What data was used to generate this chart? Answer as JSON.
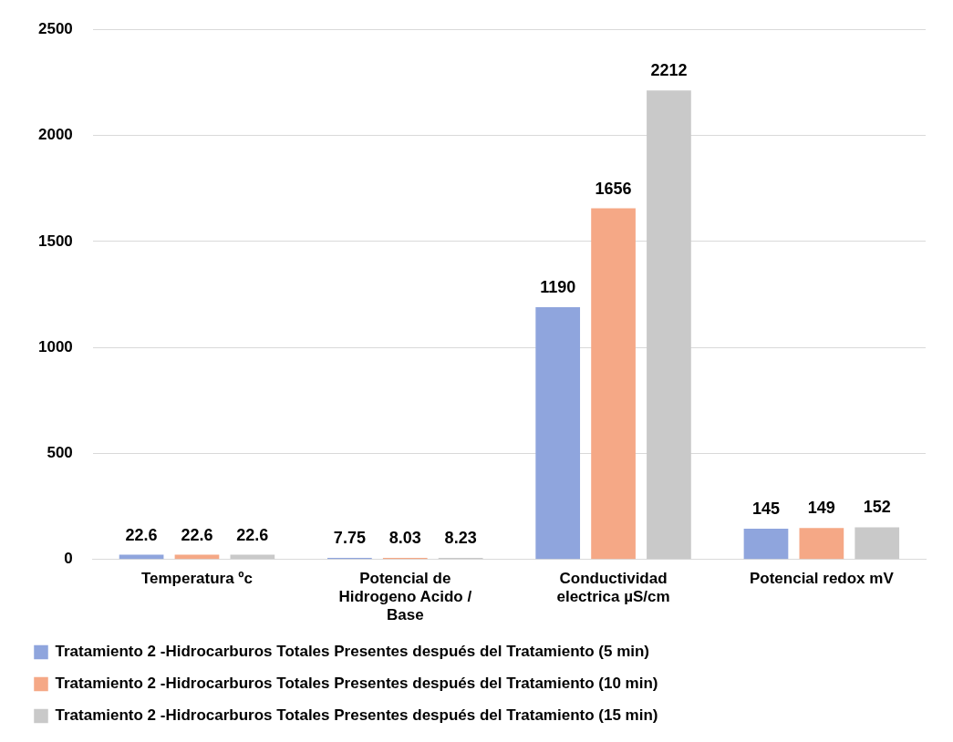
{
  "chart_data": {
    "type": "bar",
    "categories": [
      "Temperatura ºc",
      "Potencial de Hidrogeno Acido / Base",
      "Conductividad electrica µS/cm",
      "Potencial redox mV"
    ],
    "series": [
      {
        "name": "Tratamiento 2 -Hidrocarburos Totales Presentes después del Tratamiento (5 min)",
        "color": "#8fa5dd",
        "values": [
          22.6,
          7.75,
          1190,
          145
        ]
      },
      {
        "name": "Tratamiento 2 -Hidrocarburos Totales Presentes después del Tratamiento (10 min)",
        "color": "#f5a886",
        "values": [
          22.6,
          8.03,
          1656,
          149
        ]
      },
      {
        "name": "Tratamiento 2 -Hidrocarburos Totales Presentes después del Tratamiento (15 min)",
        "color": "#c9c9c9",
        "values": [
          22.6,
          8.23,
          2212,
          152
        ]
      }
    ],
    "ylim": [
      0,
      2500
    ],
    "yticks": [
      0,
      500,
      1000,
      1500,
      2000,
      2500
    ],
    "grid": "y",
    "legend": "bottom",
    "data_labels": true
  }
}
